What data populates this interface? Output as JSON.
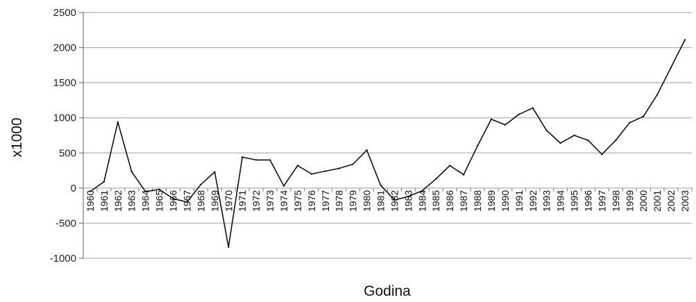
{
  "chart_data": {
    "type": "line",
    "title": "",
    "xlabel": "Godina",
    "ylabel": "x1000",
    "ylim": [
      -1000,
      2500
    ],
    "yticks": [
      2500,
      2000,
      1500,
      1000,
      500,
      0,
      -500,
      -1000
    ],
    "grid": "horizontal",
    "legend": "none",
    "colors": {
      "line": "#111111",
      "grid": "#b0b0b0",
      "axis": "#7a7a7a"
    },
    "categories": [
      "1960",
      "1961",
      "1962",
      "1963",
      "1964",
      "1965",
      "1966",
      "1967",
      "1968",
      "1969",
      "1970",
      "1971",
      "1972",
      "1973",
      "1974",
      "1975",
      "1976",
      "1977",
      "1978",
      "1979",
      "1980",
      "1981",
      "1982",
      "1983",
      "1984",
      "1985",
      "1986",
      "1987",
      "1988",
      "1989",
      "1990",
      "1991",
      "1992",
      "1993",
      "1994",
      "1995",
      "1996",
      "1997",
      "1998",
      "1999",
      "2000",
      "2001",
      "2002",
      "2003"
    ],
    "series": [
      {
        "values": [
          -50,
          90,
          940,
          230,
          -50,
          -20,
          -150,
          -200,
          50,
          230,
          -840,
          440,
          400,
          400,
          30,
          320,
          200,
          240,
          280,
          340,
          540,
          40,
          -170,
          -120,
          -40,
          130,
          320,
          190,
          600,
          980,
          900,
          1050,
          1140,
          820,
          640,
          750,
          680,
          480,
          680,
          930,
          1020,
          1330,
          1720,
          2110
        ]
      }
    ]
  }
}
